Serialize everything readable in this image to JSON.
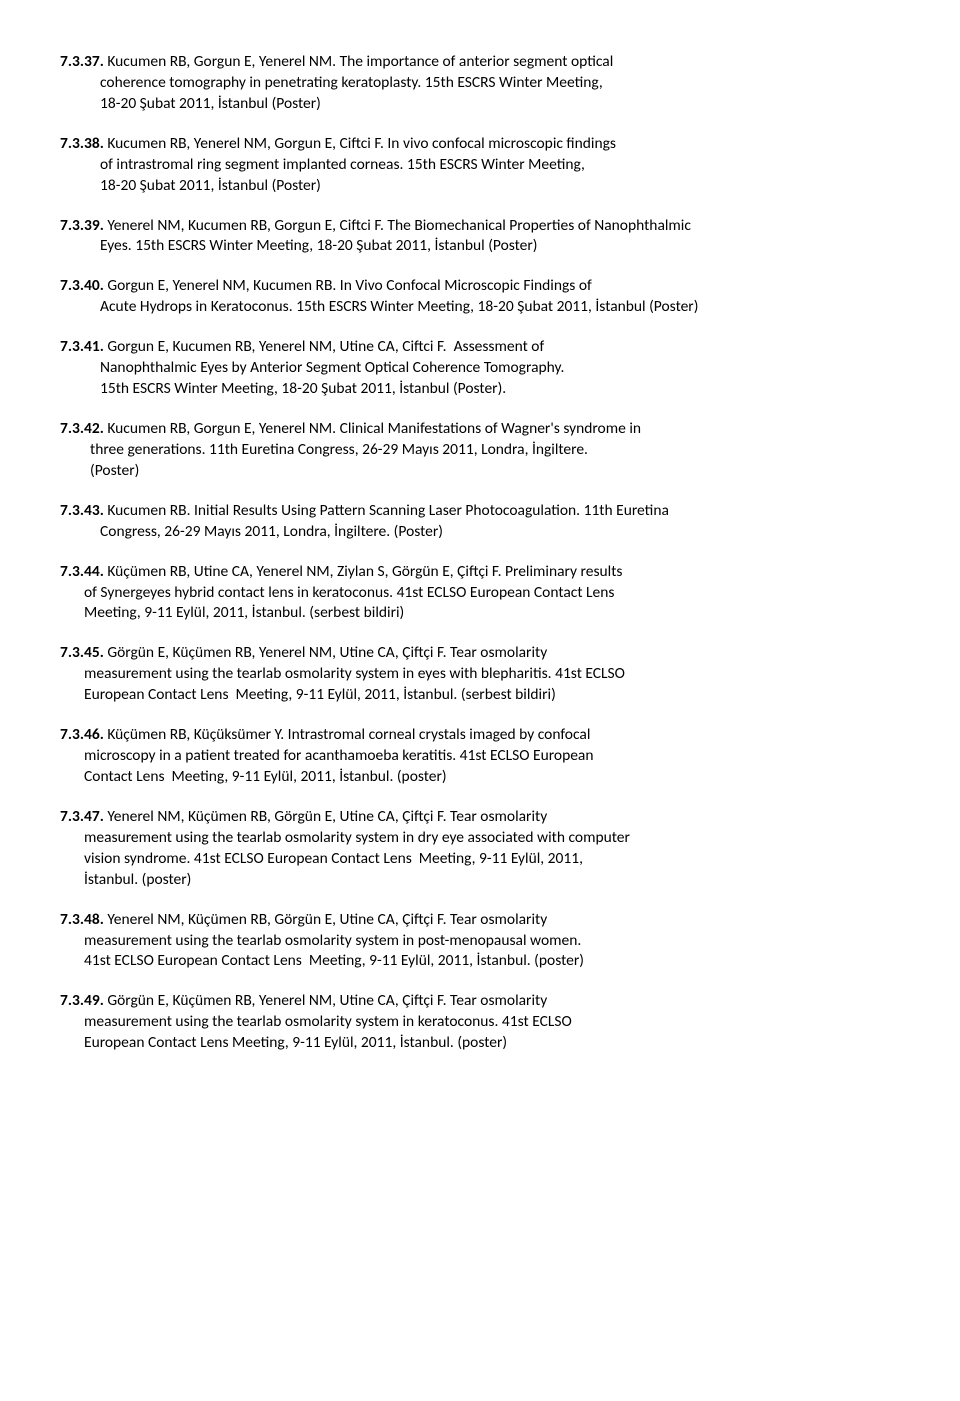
{
  "font_family": "Calibri, Segoe UI, Arial, sans-serif",
  "font_size_pt": 12,
  "line_height": 1.35,
  "text_color": "#000000",
  "background_color": "#ffffff",
  "entries": [
    {
      "num": "7.3.37.",
      "lines": [
        "Kucumen RB, Gorgun E, Yenerel NM. The importance of anterior segment optical",
        "coherence tomography in penetrating keratoplasty. 15th ESCRS Winter Meeting,",
        "18-20 Şubat 2011, İstanbul (Poster)"
      ],
      "indent": [
        0,
        40,
        40
      ]
    },
    {
      "num": "7.3.38.",
      "lines": [
        "Kucumen RB, Yenerel NM, Gorgun E, Ciftci F. In vivo confocal microscopic findings",
        "of intrastromal ring segment implanted corneas. 15th ESCRS Winter Meeting,",
        "18-20 Şubat 2011, İstanbul (Poster)"
      ],
      "indent": [
        0,
        40,
        40
      ]
    },
    {
      "num": "7.3.39.",
      "lines": [
        "Yenerel NM, Kucumen RB, Gorgun E, Ciftci F. The Biomechanical Properties of Nanophthalmic",
        "Eyes. 15th ESCRS Winter Meeting, 18-20 Şubat 2011, İstanbul (Poster)"
      ],
      "indent": [
        0,
        40
      ]
    },
    {
      "num": "7.3.40.",
      "lines": [
        "Gorgun E, Yenerel NM, Kucumen RB. In Vivo Confocal Microscopic Findings of",
        "Acute Hydrops in Keratoconus. 15th ESCRS Winter Meeting, 18-20 Şubat 2011, İstanbul (Poster)"
      ],
      "indent": [
        0,
        40
      ]
    },
    {
      "num": "7.3.41.",
      "lines": [
        "Gorgun E, Kucumen RB, Yenerel NM, Utine CA, Ciftci F.  Assessment of",
        "Nanophthalmic Eyes by Anterior Segment Optical Coherence Tomography.",
        "15th ESCRS Winter Meeting, 18-20 Şubat 2011, İstanbul (Poster)."
      ],
      "indent": [
        0,
        40,
        40
      ]
    },
    {
      "num": "7.3.42.",
      "lines": [
        "Kucumen RB, Gorgun E, Yenerel NM. Clinical Manifestations of Wagner's syndrome in",
        "three generations. 11th Euretina Congress, 26-29 Mayıs 2011, Londra, İngiltere.",
        "(Poster)"
      ],
      "indent": [
        0,
        30,
        30
      ]
    },
    {
      "num": "7.3.43.",
      "lines": [
        "Kucumen RB. Initial Results Using Pattern Scanning Laser Photocoagulation. 11th Euretina",
        "Congress, 26-29 Mayıs 2011, Londra, İngiltere. (Poster)"
      ],
      "indent": [
        0,
        40
      ]
    },
    {
      "num": "7.3.44.",
      "lines": [
        "Küçümen RB, Utine CA, Yenerel NM, Ziylan S, Görgün E, Çiftçi F. Preliminary results",
        "of Synergeyes hybrid contact lens in keratoconus. 41st ECLSO European Contact Lens",
        "Meeting, 9-11 Eylül, 2011, İstanbul. (serbest bildiri)"
      ],
      "indent": [
        0,
        24,
        24
      ]
    },
    {
      "num": "7.3.45.",
      "lines": [
        "Görgün E, Küçümen RB, Yenerel NM, Utine CA, Çiftçi F. Tear osmolarity",
        "measurement using the tearlab osmolarity system in eyes with blepharitis. 41st ECLSO",
        "European Contact Lens  Meeting, 9-11 Eylül, 2011, İstanbul. (serbest bildiri)"
      ],
      "indent": [
        0,
        24,
        24
      ]
    },
    {
      "num": "7.3.46.",
      "lines": [
        "Küçümen RB, Küçüksümer Y. Intrastromal corneal crystals imaged by confocal",
        "microscopy in a patient treated for acanthamoeba keratitis. 41st ECLSO European",
        "Contact Lens  Meeting, 9-11 Eylül, 2011, İstanbul. (poster)"
      ],
      "indent": [
        0,
        24,
        24
      ]
    },
    {
      "num": "7.3.47.",
      "lines": [
        "Yenerel NM, Küçümen RB, Görgün E, Utine CA, Çiftçi F. Tear osmolarity",
        "measurement using the tearlab osmolarity system in dry eye associated with computer",
        "vision syndrome. 41st ECLSO European Contact Lens  Meeting, 9-11 Eylül, 2011,",
        "İstanbul. (poster)"
      ],
      "indent": [
        0,
        24,
        24,
        24
      ]
    },
    {
      "num": "7.3.48.",
      "lines": [
        "Yenerel NM, Küçümen RB, Görgün E, Utine CA, Çiftçi F. Tear osmolarity",
        "measurement using the tearlab osmolarity system in post-menopausal women.",
        "41st ECLSO European Contact Lens  Meeting, 9-11 Eylül, 2011, İstanbul. (poster)"
      ],
      "indent": [
        0,
        24,
        24
      ]
    },
    {
      "num": "7.3.49.",
      "lines": [
        "Görgün E, Küçümen RB, Yenerel NM, Utine CA, Çiftçi F. Tear osmolarity",
        "measurement using the tearlab osmolarity system in keratoconus. 41st ECLSO",
        "European Contact Lens Meeting, 9-11 Eylül, 2011, İstanbul. (poster)"
      ],
      "indent": [
        0,
        24,
        24
      ]
    }
  ]
}
